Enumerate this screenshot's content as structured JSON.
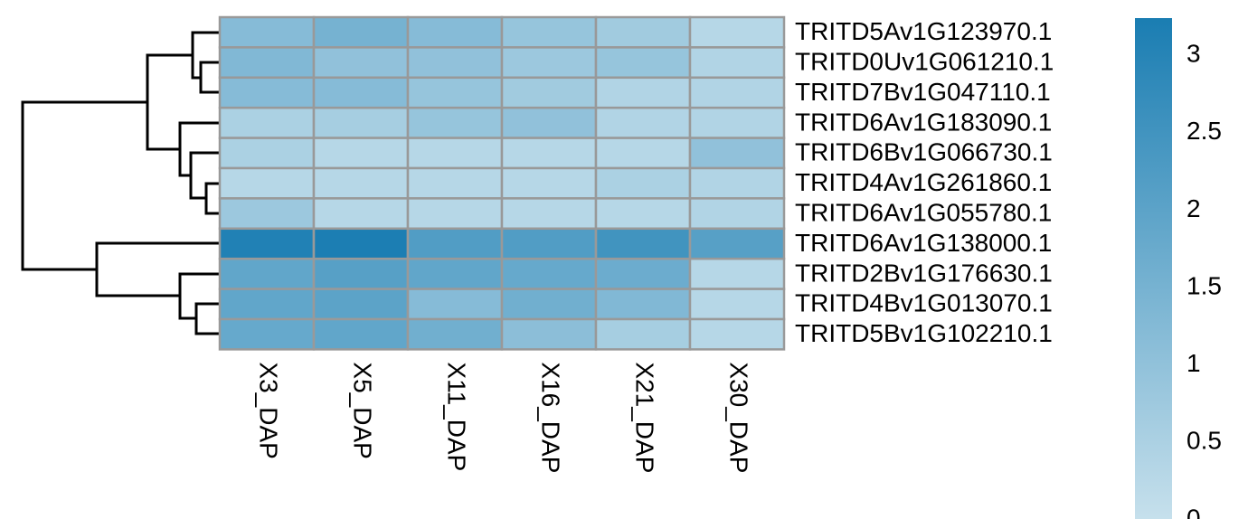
{
  "chart_data": {
    "type": "heatmap",
    "x": [
      "X3_DAP",
      "X5_DAP",
      "X11_DAP",
      "X16_DAP",
      "X21_DAP",
      "X30_DAP"
    ],
    "y": [
      "TRITD5Av1G123970.1",
      "TRITD0Uv1G061210.1",
      "TRITD7Bv1G047110.1",
      "TRITD6Av1G183090.1",
      "TRITD6Bv1G066730.1",
      "TRITD4Av1G261860.1",
      "TRITD6Av1G055780.1",
      "TRITD6Av1G138000.1",
      "TRITD2Bv1G176630.1",
      "TRITD4Bv1G013070.1",
      "TRITD5Bv1G102210.1"
    ],
    "values": [
      [
        1.2,
        1.5,
        1.2,
        0.9,
        0.7,
        0.3
      ],
      [
        1.3,
        1.0,
        1.0,
        0.8,
        0.9,
        0.4
      ],
      [
        1.2,
        1.2,
        0.9,
        0.7,
        0.4,
        0.4
      ],
      [
        0.5,
        0.6,
        0.9,
        1.0,
        0.4,
        0.4
      ],
      [
        0.5,
        0.3,
        0.3,
        0.3,
        0.3,
        1.0
      ],
      [
        0.3,
        0.3,
        0.3,
        0.3,
        0.5,
        0.4
      ],
      [
        0.8,
        0.3,
        0.3,
        0.3,
        0.3,
        0.4
      ],
      [
        3.1,
        3.2,
        2.2,
        2.2,
        2.5,
        2.1
      ],
      [
        1.9,
        2.1,
        1.9,
        1.8,
        1.7,
        0.3
      ],
      [
        1.9,
        2.0,
        1.2,
        1.6,
        1.3,
        0.3
      ],
      [
        1.8,
        1.9,
        1.6,
        1.1,
        0.6,
        0.3
      ]
    ],
    "colors": [
      "#c6e0ec",
      "#1a7db2"
    ],
    "zlim": [
      0,
      3.24
    ],
    "zticks": [
      0,
      0.5,
      1,
      1.5,
      2,
      2.5,
      3
    ]
  }
}
